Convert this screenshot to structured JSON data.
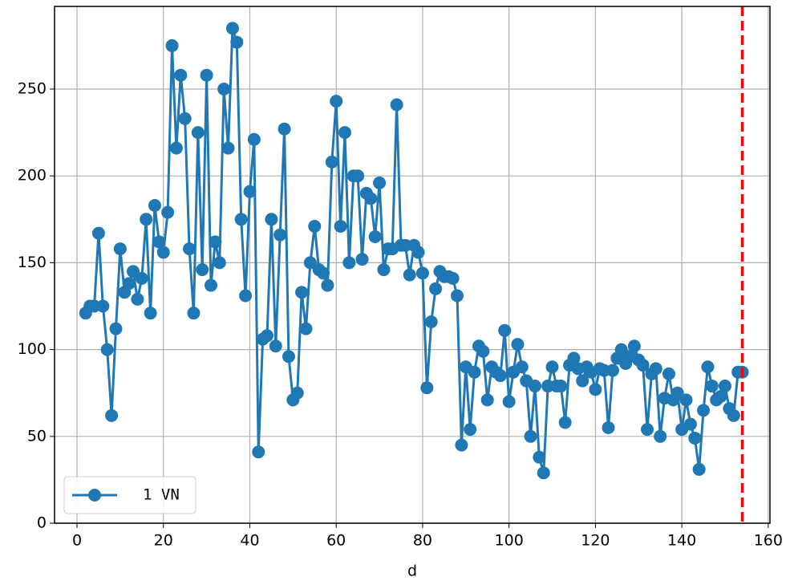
{
  "chart_data": {
    "type": "line",
    "xlabel": "d",
    "x": [
      2,
      3,
      4,
      5,
      6,
      7,
      8,
      9,
      10,
      11,
      12,
      13,
      14,
      15,
      16,
      17,
      18,
      19,
      20,
      21,
      22,
      23,
      24,
      25,
      26,
      27,
      28,
      29,
      30,
      31,
      32,
      33,
      34,
      35,
      36,
      37,
      38,
      39,
      40,
      41,
      42,
      43,
      44,
      45,
      46,
      47,
      48,
      49,
      50,
      51,
      52,
      53,
      54,
      55,
      56,
      57,
      58,
      59,
      60,
      61,
      62,
      63,
      64,
      65,
      66,
      67,
      68,
      69,
      70,
      71,
      72,
      73,
      74,
      75,
      76,
      77,
      78,
      79,
      80,
      81,
      82,
      83,
      84,
      85,
      86,
      87,
      88,
      89,
      90,
      91,
      92,
      93,
      94,
      95,
      96,
      97,
      98,
      99,
      100,
      101,
      102,
      103,
      104,
      105,
      106,
      107,
      108,
      109,
      110,
      111,
      112,
      113,
      114,
      115,
      116,
      117,
      118,
      119,
      120,
      121,
      122,
      123,
      124,
      125,
      126,
      127,
      128,
      129,
      130,
      131,
      132,
      133,
      134,
      135,
      136,
      137,
      138,
      139,
      140,
      141,
      142,
      143,
      144,
      145,
      146,
      147,
      148,
      149,
      150,
      151,
      152,
      153,
      154
    ],
    "series": [
      {
        "name": "1 VN",
        "color": "#1f77b4",
        "values": [
          121,
          125,
          125,
          167,
          125,
          100,
          62,
          112,
          158,
          133,
          138,
          145,
          129,
          141,
          175,
          121,
          183,
          162,
          156,
          179,
          275,
          216,
          258,
          233,
          158,
          121,
          225,
          146,
          258,
          137,
          162,
          150,
          250,
          216,
          285,
          277,
          175,
          131,
          191,
          221,
          41,
          106,
          108,
          175,
          102,
          166,
          227,
          96,
          71,
          75,
          133,
          112,
          150,
          171,
          146,
          144,
          137,
          208,
          243,
          171,
          225,
          150,
          200,
          200,
          152,
          190,
          187,
          165,
          196,
          146,
          158,
          158,
          241,
          160,
          160,
          143,
          160,
          156,
          144,
          78,
          116,
          135,
          145,
          142,
          142,
          141,
          131,
          45,
          90,
          54,
          87,
          102,
          99,
          71,
          90,
          87,
          85,
          111,
          70,
          87,
          103,
          90,
          82,
          50,
          79,
          38,
          29,
          79,
          90,
          79,
          79,
          58,
          91,
          95,
          89,
          82,
          90,
          87,
          77,
          89,
          88,
          55,
          88,
          95,
          100,
          92,
          96,
          102,
          94,
          91,
          54,
          86,
          89,
          50,
          72,
          86,
          71,
          75,
          54,
          71,
          57,
          49,
          31,
          65,
          90,
          79,
          71,
          73,
          79,
          66,
          62,
          87,
          87
        ]
      }
    ],
    "vline": {
      "x": 154,
      "color": "#ff0000"
    },
    "xlim": [
      -5.2,
      160.4
    ],
    "ylim": [
      0,
      297.6
    ],
    "xticks": [
      0,
      20,
      40,
      60,
      80,
      100,
      120,
      140,
      160
    ],
    "yticks": [
      0,
      50,
      100,
      150,
      200,
      250
    ],
    "grid": true,
    "legend": "lower left"
  }
}
